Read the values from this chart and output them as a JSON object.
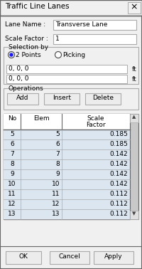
{
  "title": "Traffic Line Lanes",
  "bg_color": "#f0f0f0",
  "dialog_bg": "#f0f0f0",
  "lane_name_label": "Lane Name :",
  "lane_name_value": "Transverse Lane",
  "scale_factor_label": "Scale Factor :",
  "scale_factor_value": "1",
  "selection_by_label": "Selection by",
  "radio1": "2 Points",
  "radio2": "Picking",
  "coord1": "0, 0, 0",
  "coord2": "0, 0, 0",
  "ft_label": "ft",
  "operations_label": "Operations",
  "btn_add": "Add",
  "btn_insert": "Insert",
  "btn_delete": "Delete",
  "table_headers": [
    "No",
    "Elem",
    "Scale\nFactor"
  ],
  "table_data": [
    [
      5,
      5,
      0.185
    ],
    [
      6,
      6,
      0.185
    ],
    [
      7,
      7,
      0.142
    ],
    [
      8,
      8,
      0.142
    ],
    [
      9,
      9,
      0.142
    ],
    [
      10,
      10,
      0.142
    ],
    [
      11,
      11,
      0.112
    ],
    [
      12,
      12,
      0.112
    ],
    [
      13,
      13,
      0.112
    ]
  ],
  "table_row_color": "#dce6f1",
  "table_header_color": "#ffffff",
  "btn_ok": "OK",
  "btn_cancel": "Cancel",
  "btn_apply": "Apply",
  "close_x": "×",
  "border_color": "#aaaaaa",
  "dark_border": "#666666",
  "text_color": "#000000",
  "input_bg": "#ffffff",
  "titlebar_bg": "#f0f0f0",
  "scrollbar_bg": "#c8c8c8",
  "scrollbar_thumb": "#a0a0a0"
}
